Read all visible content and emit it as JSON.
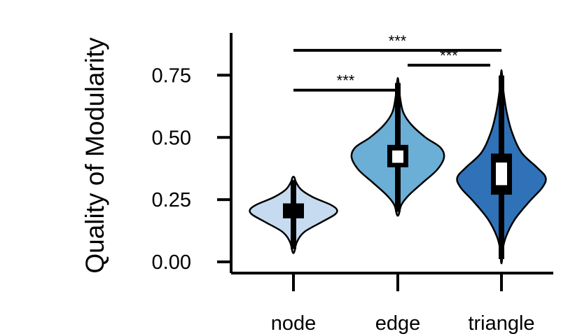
{
  "chart_data": {
    "type": "violin",
    "ylabel": "Quality of Modularity",
    "categories": [
      "node",
      "edge",
      "triangle"
    ],
    "y_ticks": [
      0.0,
      0.25,
      0.5,
      0.75
    ],
    "y_tick_labels": [
      "0.00",
      "0.25",
      "0.50",
      "0.75"
    ],
    "ylim": [
      -0.05,
      0.92
    ],
    "grid": false,
    "colors": {
      "node": "#c6dbef",
      "edge": "#6baed6",
      "triangle": "#2f72b8"
    },
    "series": [
      {
        "category": "node",
        "min": 0.04,
        "max": 0.34,
        "q1": 0.175,
        "median": 0.205,
        "q3": 0.235,
        "mean": 0.205,
        "density": [
          [
            0.04,
            0.02
          ],
          [
            0.08,
            0.08
          ],
          [
            0.12,
            0.25
          ],
          [
            0.16,
            0.65
          ],
          [
            0.19,
            0.95
          ],
          [
            0.21,
            1.0
          ],
          [
            0.23,
            0.85
          ],
          [
            0.26,
            0.45
          ],
          [
            0.29,
            0.18
          ],
          [
            0.32,
            0.06
          ],
          [
            0.34,
            0.02
          ]
        ]
      },
      {
        "category": "edge",
        "min": 0.19,
        "max": 0.73,
        "q1": 0.38,
        "median": 0.42,
        "q3": 0.47,
        "mean": 0.42,
        "density": [
          [
            0.19,
            0.02
          ],
          [
            0.23,
            0.08
          ],
          [
            0.27,
            0.25
          ],
          [
            0.32,
            0.55
          ],
          [
            0.37,
            0.85
          ],
          [
            0.42,
            1.0
          ],
          [
            0.46,
            0.92
          ],
          [
            0.5,
            0.6
          ],
          [
            0.55,
            0.3
          ],
          [
            0.6,
            0.12
          ],
          [
            0.66,
            0.05
          ],
          [
            0.73,
            0.01
          ]
        ]
      },
      {
        "category": "triangle",
        "min": 0.0,
        "max": 0.76,
        "q1": 0.27,
        "median": 0.355,
        "q3": 0.435,
        "mean": 0.355,
        "density": [
          [
            0.0,
            0.01
          ],
          [
            0.05,
            0.03
          ],
          [
            0.1,
            0.1
          ],
          [
            0.17,
            0.3
          ],
          [
            0.24,
            0.62
          ],
          [
            0.3,
            0.93
          ],
          [
            0.34,
            1.0
          ],
          [
            0.38,
            0.8
          ],
          [
            0.44,
            0.45
          ],
          [
            0.52,
            0.24
          ],
          [
            0.6,
            0.12
          ],
          [
            0.68,
            0.05
          ],
          [
            0.76,
            0.01
          ]
        ]
      }
    ],
    "annotations": [
      {
        "from": "node",
        "to": "edge",
        "label": "***",
        "y": 0.69
      },
      {
        "from": "edge",
        "to": "triangle",
        "label": "***",
        "y": 0.79
      },
      {
        "from": "node",
        "to": "triangle",
        "label": "***",
        "y": 0.85
      }
    ]
  }
}
